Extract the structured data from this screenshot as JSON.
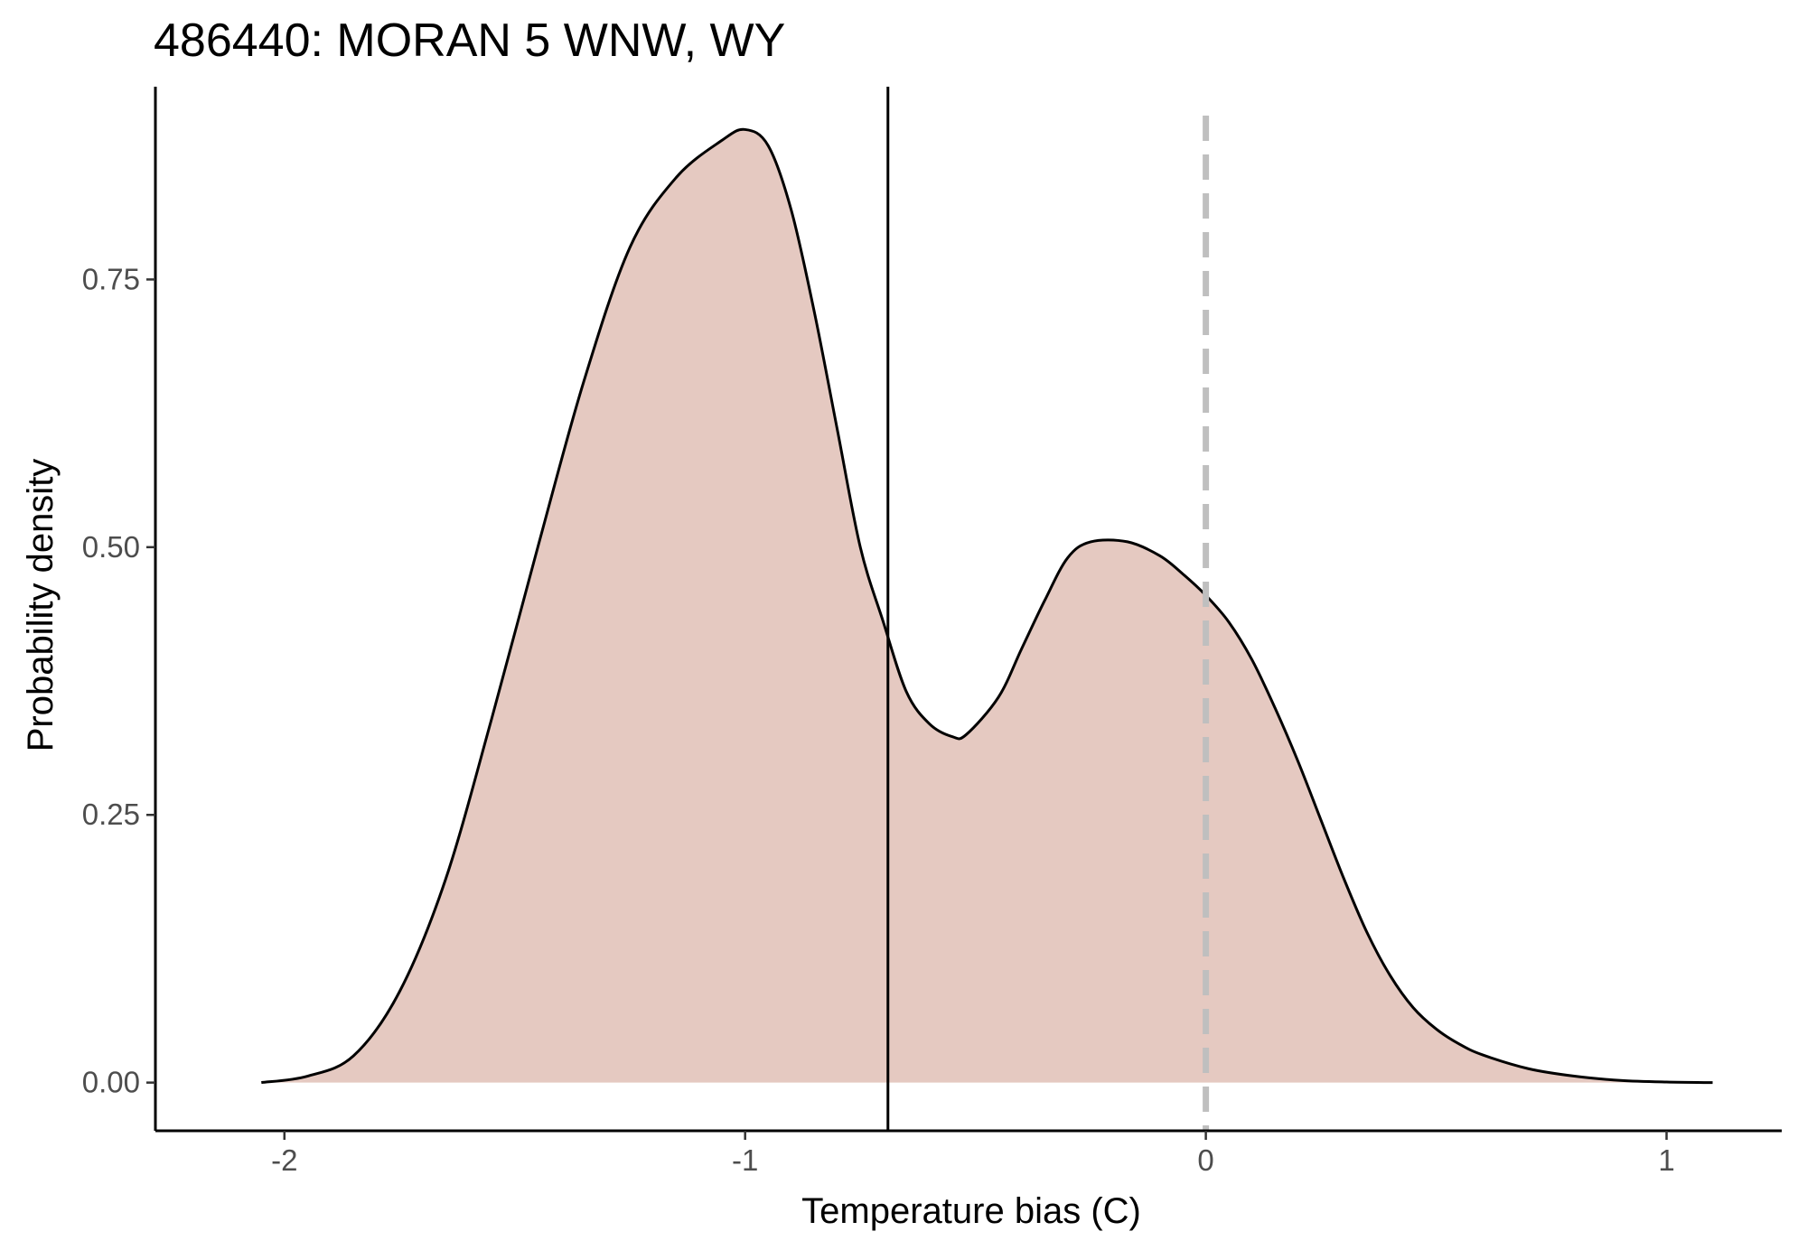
{
  "chart_data": {
    "type": "area",
    "title": "486440: MORAN 5 WNW, WY",
    "xlabel": "Temperature bias (C)",
    "ylabel": "Probability density",
    "xlim": [
      -2.28,
      1.25
    ],
    "ylim": [
      -0.045,
      0.93
    ],
    "x_ticks": [
      -2,
      -1,
      0,
      1
    ],
    "x_tick_labels": [
      "-2",
      "-1",
      "0",
      "1"
    ],
    "y_ticks": [
      0.0,
      0.25,
      0.5,
      0.75
    ],
    "y_tick_labels": [
      "0.00",
      "0.25",
      "0.50",
      "0.75"
    ],
    "grid": false,
    "fill_color": "#e5c9c1",
    "line_color": "#000000",
    "series": [
      {
        "x": [
          -2.05,
          -1.95,
          -1.85,
          -1.75,
          -1.65,
          -1.55,
          -1.45,
          -1.35,
          -1.25,
          -1.15,
          -1.05,
          -1.0,
          -0.95,
          -0.9,
          -0.85,
          -0.8,
          -0.75,
          -0.7,
          -0.65,
          -0.6,
          -0.55,
          -0.52,
          -0.45,
          -0.4,
          -0.35,
          -0.3,
          -0.25,
          -0.17,
          -0.1,
          -0.05,
          0.0,
          0.05,
          0.1,
          0.15,
          0.2,
          0.25,
          0.3,
          0.35,
          0.4,
          0.45,
          0.5,
          0.55,
          0.6,
          0.7,
          0.8,
          0.9,
          1.0,
          1.1
        ],
        "y": [
          0.0,
          0.006,
          0.025,
          0.085,
          0.19,
          0.34,
          0.5,
          0.655,
          0.78,
          0.845,
          0.88,
          0.89,
          0.875,
          0.815,
          0.72,
          0.61,
          0.5,
          0.43,
          0.365,
          0.335,
          0.323,
          0.325,
          0.36,
          0.405,
          0.45,
          0.49,
          0.505,
          0.505,
          0.492,
          0.475,
          0.455,
          0.43,
          0.395,
          0.35,
          0.3,
          0.245,
          0.19,
          0.14,
          0.1,
          0.07,
          0.05,
          0.036,
          0.026,
          0.013,
          0.006,
          0.002,
          0.0005,
          0.0
        ]
      }
    ],
    "reference_lines": [
      {
        "x": -0.69,
        "style": "solid",
        "color": "#000000"
      },
      {
        "x": 0.0,
        "style": "dashed",
        "color": "#bfbfbf"
      }
    ]
  }
}
